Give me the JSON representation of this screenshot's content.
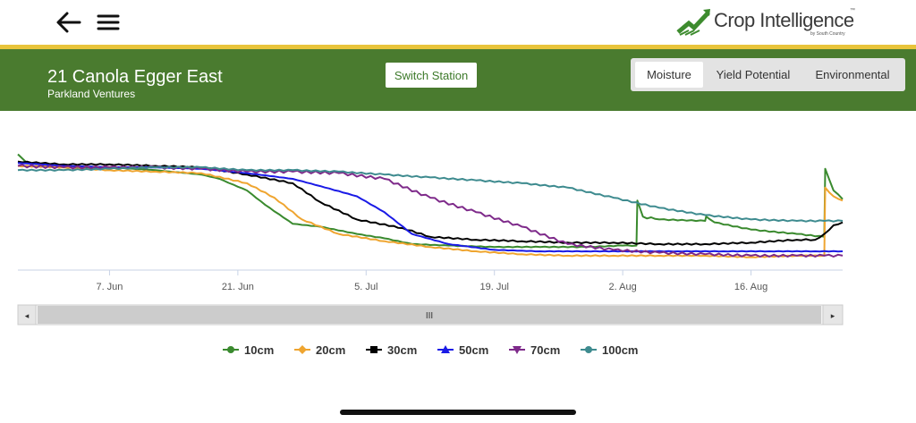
{
  "app": {
    "logo_text": "Crop Intelligence",
    "logo_sub": "by South Country",
    "logo_tm": "™",
    "brand_green": "#4a7b2f",
    "accent_gold": "#e8c43a"
  },
  "nav": {
    "back_icon": "arrow-left-icon",
    "menu_icon": "hamburger-menu-icon"
  },
  "station": {
    "name": "21 Canola Egger East",
    "owner": "Parkland Ventures",
    "switch_label": "Switch Station"
  },
  "tabs": [
    {
      "label": "Moisture",
      "active": true
    },
    {
      "label": "Yield Potential",
      "active": false
    },
    {
      "label": "Environmental",
      "active": false
    }
  ],
  "navigator": {
    "handle_glyph": "III",
    "left_arrow": "◂",
    "right_arrow": "▸"
  },
  "chart_data": {
    "type": "line",
    "x_ticks": [
      "7. Jun",
      "21. Jun",
      "5. Jul",
      "19. Jul",
      "2. Aug",
      "16. Aug"
    ],
    "grid": false,
    "legend_position": "bottom",
    "series": [
      {
        "name": "10cm",
        "color": "#3a8a2e",
        "marker": "circle",
        "points": [
          [
            0,
            0.75
          ],
          [
            1,
            0.69
          ],
          [
            5,
            0.66
          ],
          [
            10,
            0.66
          ],
          [
            15,
            0.64
          ],
          [
            20,
            0.61
          ],
          [
            22,
            0.58
          ],
          [
            25,
            0.5
          ],
          [
            27,
            0.4
          ],
          [
            30,
            0.27
          ],
          [
            33,
            0.25
          ],
          [
            37,
            0.2
          ],
          [
            40,
            0.17
          ],
          [
            43,
            0.13
          ],
          [
            47,
            0.12
          ],
          [
            52,
            0.11
          ],
          [
            57,
            0.11
          ],
          [
            62,
            0.11
          ],
          [
            66,
            0.12
          ],
          [
            67.5,
            0.12
          ],
          [
            67.6,
            0.43
          ],
          [
            68.2,
            0.32
          ],
          [
            70,
            0.3
          ],
          [
            75,
            0.29
          ],
          [
            75.1,
            0.32
          ],
          [
            76,
            0.28
          ],
          [
            80,
            0.23
          ],
          [
            85,
            0.2
          ],
          [
            88,
            0.18
          ],
          [
            88.1,
            0.65
          ],
          [
            89,
            0.5
          ],
          [
            90,
            0.44
          ]
        ]
      },
      {
        "name": "20cm",
        "color": "#efa530",
        "marker": "diamond",
        "points": [
          [
            0,
            0.67
          ],
          [
            5,
            0.66
          ],
          [
            10,
            0.64
          ],
          [
            15,
            0.63
          ],
          [
            20,
            0.62
          ],
          [
            25,
            0.55
          ],
          [
            28,
            0.45
          ],
          [
            31,
            0.3
          ],
          [
            35,
            0.2
          ],
          [
            40,
            0.15
          ],
          [
            45,
            0.11
          ],
          [
            50,
            0.08
          ],
          [
            55,
            0.06
          ],
          [
            60,
            0.05
          ],
          [
            65,
            0.05
          ],
          [
            70,
            0.05
          ],
          [
            75,
            0.05
          ],
          [
            80,
            0.04
          ],
          [
            85,
            0.05
          ],
          [
            88,
            0.05
          ],
          [
            88.1,
            0.52
          ],
          [
            89,
            0.46
          ],
          [
            90,
            0.43
          ]
        ]
      },
      {
        "name": "30cm",
        "color": "#000000",
        "marker": "square",
        "points": [
          [
            0,
            0.7
          ],
          [
            5,
            0.68
          ],
          [
            10,
            0.68
          ],
          [
            15,
            0.67
          ],
          [
            20,
            0.66
          ],
          [
            25,
            0.61
          ],
          [
            30,
            0.55
          ],
          [
            33,
            0.42
          ],
          [
            37,
            0.3
          ],
          [
            42,
            0.24
          ],
          [
            45,
            0.18
          ],
          [
            50,
            0.16
          ],
          [
            55,
            0.15
          ],
          [
            60,
            0.14
          ],
          [
            65,
            0.14
          ],
          [
            70,
            0.13
          ],
          [
            75,
            0.13
          ],
          [
            80,
            0.14
          ],
          [
            85,
            0.16
          ],
          [
            87,
            0.16
          ],
          [
            88,
            0.2
          ],
          [
            89,
            0.26
          ],
          [
            90,
            0.28
          ]
        ]
      },
      {
        "name": "50cm",
        "color": "#1a1ae6",
        "marker": "triangle",
        "points": [
          [
            0,
            0.69
          ],
          [
            5,
            0.67
          ],
          [
            10,
            0.66
          ],
          [
            15,
            0.66
          ],
          [
            20,
            0.65
          ],
          [
            25,
            0.62
          ],
          [
            30,
            0.58
          ],
          [
            33,
            0.53
          ],
          [
            37,
            0.46
          ],
          [
            40,
            0.35
          ],
          [
            43,
            0.2
          ],
          [
            47,
            0.13
          ],
          [
            52,
            0.09
          ],
          [
            57,
            0.08
          ],
          [
            62,
            0.08
          ],
          [
            67,
            0.08
          ],
          [
            72,
            0.08
          ],
          [
            77,
            0.08
          ],
          [
            82,
            0.08
          ],
          [
            87,
            0.08
          ],
          [
            90,
            0.08
          ]
        ]
      },
      {
        "name": "70cm",
        "color": "#7e2a8a",
        "marker": "triangle-down",
        "points": [
          [
            0,
            0.67
          ],
          [
            5,
            0.66
          ],
          [
            10,
            0.66
          ],
          [
            15,
            0.66
          ],
          [
            20,
            0.65
          ],
          [
            25,
            0.63
          ],
          [
            30,
            0.63
          ],
          [
            35,
            0.62
          ],
          [
            40,
            0.58
          ],
          [
            45,
            0.45
          ],
          [
            50,
            0.35
          ],
          [
            55,
            0.25
          ],
          [
            60,
            0.13
          ],
          [
            65,
            0.09
          ],
          [
            70,
            0.07
          ],
          [
            75,
            0.06
          ],
          [
            80,
            0.05
          ],
          [
            85,
            0.05
          ],
          [
            88,
            0.05
          ],
          [
            90,
            0.05
          ]
        ]
      },
      {
        "name": "100cm",
        "color": "#3e8b8f",
        "marker": "circle",
        "points": [
          [
            0,
            0.64
          ],
          [
            5,
            0.64
          ],
          [
            10,
            0.65
          ],
          [
            15,
            0.66
          ],
          [
            20,
            0.66
          ],
          [
            25,
            0.64
          ],
          [
            30,
            0.64
          ],
          [
            35,
            0.63
          ],
          [
            40,
            0.61
          ],
          [
            45,
            0.59
          ],
          [
            50,
            0.57
          ],
          [
            55,
            0.55
          ],
          [
            60,
            0.52
          ],
          [
            65,
            0.45
          ],
          [
            70,
            0.38
          ],
          [
            75,
            0.33
          ],
          [
            80,
            0.3
          ],
          [
            85,
            0.29
          ],
          [
            88,
            0.29
          ],
          [
            90,
            0.29
          ]
        ]
      }
    ]
  }
}
